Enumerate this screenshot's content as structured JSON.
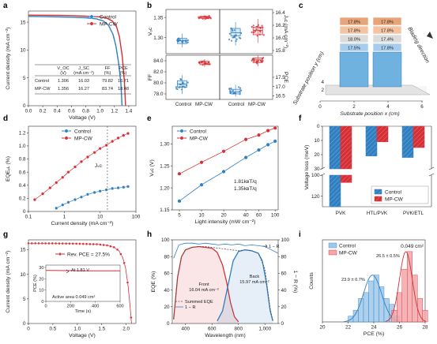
{
  "colors": {
    "control": "#2f7fc1",
    "mpcw": "#d62f35",
    "control_light": "#9ec8ea",
    "mpcw_light": "#f2a6a9",
    "pbar_top": "#e7a478",
    "pbar_mid": "#f4c4a2",
    "pbar_base": "#6fb1df"
  },
  "panel_labels": [
    "a",
    "b",
    "c",
    "d",
    "e",
    "f",
    "g",
    "h",
    "i"
  ],
  "chart_data": [
    {
      "panel": "a",
      "type": "line",
      "xlabel": "Voltage (V)",
      "ylabel": "Current density (mA cm⁻²)",
      "xlim": [
        0,
        1.5
      ],
      "ylim": [
        0,
        17
      ],
      "xticks": [
        0,
        0.2,
        0.4,
        0.6,
        0.8,
        1.0,
        1.2,
        1.4
      ],
      "yticks": [
        0,
        5,
        10,
        15
      ],
      "series": [
        {
          "name": "Control",
          "color": "#2f7fc1",
          "x": [
            0,
            0.2,
            0.4,
            0.6,
            0.8,
            0.95,
            1.05,
            1.12,
            1.18,
            1.22,
            1.26,
            1.29,
            1.306
          ],
          "y": [
            16.03,
            16.0,
            15.95,
            15.9,
            15.8,
            15.6,
            15.2,
            14.4,
            12.8,
            10.8,
            7.6,
            4.0,
            0
          ]
        },
        {
          "name": "MP-CW",
          "color": "#d62f35",
          "x": [
            0,
            0.2,
            0.4,
            0.6,
            0.8,
            1.0,
            1.1,
            1.17,
            1.23,
            1.27,
            1.31,
            1.34,
            1.356
          ],
          "y": [
            16.27,
            16.25,
            16.22,
            16.18,
            16.1,
            15.95,
            15.7,
            15.2,
            14.2,
            12.4,
            8.8,
            4.2,
            0
          ]
        }
      ],
      "table": {
        "headers": [
          "",
          "Vₒc\n(V)",
          "Jₛc\n(mA cm⁻²)",
          "FF\n(%)",
          "PCE\n(%)"
        ],
        "header_top": [
          "",
          "V_OC",
          "J_SC",
          "FF",
          "PCE"
        ],
        "header_bottom": [
          "",
          "(V)",
          "(mA cm⁻²)",
          "(%)",
          "(%)"
        ],
        "rows": [
          [
            "Control",
            "1.306",
            "16.03",
            "79.82",
            "16.71"
          ],
          [
            "MP-CW",
            "1.356",
            "16.27",
            "83.74",
            "18.48"
          ]
        ]
      }
    },
    {
      "panel": "b",
      "type": "scatter",
      "categories": [
        "Control",
        "MP-CW"
      ],
      "subplots": [
        {
          "ylabel": "Vₒc",
          "unit": "(V)",
          "ylim": [
            1.26,
            1.37
          ],
          "yticks": [
            "1.35",
            "1.30"
          ],
          "side": "left",
          "control": {
            "q1": 1.285,
            "med": 1.292,
            "q3": 1.298,
            "lo": 1.276,
            "hi": 1.31
          },
          "mpcw": {
            "q1": 1.348,
            "med": 1.351,
            "q3": 1.353,
            "lo": 1.343,
            "hi": 1.357
          }
        },
        {
          "ylabel": "Jₛc (mA cm⁻²)",
          "unit": "",
          "ylim": [
            15.75,
            16.45
          ],
          "yticks": [
            "16.4",
            "16.2",
            "16.0",
            "15.8"
          ],
          "side": "right",
          "control": {
            "q1": 16.03,
            "med": 16.08,
            "q3": 16.15,
            "lo": 15.88,
            "hi": 16.25
          },
          "mpcw": {
            "q1": 16.05,
            "med": 16.12,
            "q3": 16.17,
            "lo": 15.92,
            "hi": 16.3
          }
        },
        {
          "ylabel": "FF",
          "unit": "(%)",
          "ylim": [
            77,
            85
          ],
          "yticks": [
            "84.0",
            "82.0",
            "80.0",
            "78.0"
          ],
          "side": "left",
          "control": {
            "q1": 79.2,
            "med": 79.8,
            "q3": 80.4,
            "lo": 78.0,
            "hi": 81.4
          },
          "mpcw": {
            "q1": 83.3,
            "med": 83.6,
            "q3": 83.9,
            "lo": 82.9,
            "hi": 84.3
          }
        },
        {
          "ylabel": "PCE",
          "unit": "(%)",
          "ylim": [
            16.3,
            18.7
          ],
          "yticks": [
            "17.5",
            "17.0",
            "16.5"
          ],
          "side": "right",
          "control": {
            "q1": 16.6,
            "med": 16.7,
            "q3": 16.85,
            "lo": 16.45,
            "hi": 17.1
          },
          "mpcw": {
            "q1": 18.3,
            "med": 18.45,
            "q3": 18.55,
            "lo": 18.1,
            "hi": 18.7
          }
        }
      ]
    },
    {
      "panel": "c",
      "type": "bar",
      "xlabel": "Substrate position x (cm)",
      "ylabel": "Substrate position y (cm)",
      "xticks": [
        "0",
        "2",
        "4",
        "6"
      ],
      "yticks": [
        "2",
        "4"
      ],
      "blading_label": "Blading direction",
      "columns": [
        {
          "x": 2,
          "values": [
            "17.8%",
            "17.8%",
            "18.0%",
            "17.5%"
          ]
        },
        {
          "x": 4,
          "values": [
            "17.8%",
            "17.8%",
            "17.4%",
            "17.8%"
          ]
        }
      ]
    },
    {
      "panel": "d",
      "type": "scatter",
      "xlabel": "Current density (mA cm⁻²)",
      "ylabel": "EQEₑʟ (%)",
      "xscale": "log",
      "xlim": [
        0.1,
        100
      ],
      "ylim": [
        0,
        1.3
      ],
      "xticks": [
        "0.1",
        "1",
        "10",
        "100"
      ],
      "yticks": [
        "0",
        "0.2",
        "0.4",
        "0.6",
        "0.8",
        "1.0",
        "1.2"
      ],
      "jsc_marker": 16,
      "jsc_label": "Jₛc",
      "series": [
        {
          "name": "Control",
          "color": "#2f7fc1",
          "x": [
            0.6,
            0.9,
            1.3,
            2,
            3,
            4.5,
            7,
            10,
            15,
            22,
            32,
            45,
            60
          ],
          "y": [
            0.05,
            0.1,
            0.14,
            0.18,
            0.22,
            0.26,
            0.29,
            0.31,
            0.33,
            0.35,
            0.36,
            0.37,
            0.38
          ]
        },
        {
          "name": "MP-CW",
          "color": "#d62f35",
          "x": [
            0.15,
            0.25,
            0.4,
            0.6,
            0.9,
            1.3,
            2,
            3,
            4.5,
            7,
            10,
            15,
            22,
            32,
            45,
            60
          ],
          "y": [
            0.18,
            0.27,
            0.36,
            0.44,
            0.52,
            0.6,
            0.68,
            0.76,
            0.83,
            0.9,
            0.96,
            1.01,
            1.07,
            1.12,
            1.16,
            1.19
          ]
        }
      ]
    },
    {
      "panel": "e",
      "type": "scatter",
      "xlabel": "Light intensity (mW cm⁻²)",
      "ylabel": "Vₒc (V)",
      "xscale": "log",
      "xlim": [
        4,
        110
      ],
      "ylim": [
        1.15,
        1.34
      ],
      "xticks": [
        "5",
        "10",
        "20",
        "40",
        "60",
        "100"
      ],
      "yticks": [
        "1.15",
        "1.20",
        "1.25",
        "1.30"
      ],
      "annotations": [
        {
          "text": "1.81kʙT/q",
          "color": "#2f7fc1"
        },
        {
          "text": "1.35kʙT/q",
          "color": "#d62f35"
        }
      ],
      "series": [
        {
          "name": "Control",
          "color": "#2f7fc1",
          "x": [
            5,
            10,
            20,
            40,
            60,
            80,
            100
          ],
          "y": [
            1.17,
            1.207,
            1.237,
            1.269,
            1.286,
            1.298,
            1.306
          ]
        },
        {
          "name": "MP-CW",
          "color": "#d62f35",
          "x": [
            5,
            10,
            20,
            40,
            60,
            80,
            100
          ],
          "y": [
            1.232,
            1.258,
            1.283,
            1.31,
            1.32,
            1.33,
            1.336
          ]
        }
      ]
    },
    {
      "panel": "f",
      "type": "bar",
      "ylabel": "Voltage loss (meV)",
      "categories": [
        "PVK",
        "HTL/PVK",
        "PVK/ETL"
      ],
      "yticks_top": [
        "0",
        "10",
        "20",
        "30"
      ],
      "yticks_bottom": [
        "100",
        "120"
      ],
      "series": [
        {
          "name": "Control",
          "color": "#2f7fc1",
          "values": [
            130,
            21,
            22
          ]
        },
        {
          "name": "MP-CW",
          "color": "#d62f35",
          "values": [
            107,
            11,
            15
          ]
        }
      ]
    },
    {
      "panel": "g",
      "type": "line",
      "xlabel": "Voltage (V)",
      "ylabel": "Current density (mA cm⁻²)",
      "xlim": [
        0,
        2.2
      ],
      "ylim": [
        0,
        17
      ],
      "xticks": [
        "0",
        "0.5",
        "1.0",
        "1.5",
        "2.0"
      ],
      "yticks": [
        "0",
        "5",
        "10",
        "15"
      ],
      "series": [
        {
          "name": "Rev. PCE = 27.5%",
          "color": "#d62f35",
          "x": [
            0,
            0.5,
            1.0,
            1.4,
            1.6,
            1.75,
            1.85,
            1.93,
            1.99,
            2.04,
            2.08,
            2.11
          ],
          "y": [
            16.3,
            16.28,
            16.22,
            16.1,
            15.9,
            15.5,
            14.8,
            13.4,
            11.2,
            7.6,
            3.6,
            0
          ]
        }
      ],
      "inset": {
        "title": "At 1.81 V",
        "ylabel": "PCE (%)",
        "xlabel": "Time (s)",
        "note": "Active area 0.049 cm²",
        "ylim": [
          0,
          32
        ],
        "xlim": [
          0,
          600
        ],
        "xticks": [
          "0",
          "200",
          "400",
          "600"
        ],
        "yticks": [
          "0",
          "10",
          "20",
          "30"
        ],
        "series": [
          {
            "color": "#d62f35",
            "x": [
              0,
              100,
              200,
              300,
              400,
              500,
              600
            ],
            "y": [
              27.3,
              27.2,
              27.1,
              27.0,
              27.0,
              26.9,
              26.9
            ]
          }
        ]
      }
    },
    {
      "panel": "h",
      "type": "line",
      "xlabel": "Wavelength (nm)",
      "ylabel": "EQE (%)",
      "ylabel_right": "1 − R (%)",
      "xlim": [
        300,
        1100
      ],
      "ylim": [
        0,
        100
      ],
      "xticks": [
        "400",
        "600",
        "800",
        "1,000"
      ],
      "yticks": [
        "0",
        "20",
        "40",
        "60",
        "80",
        "100"
      ],
      "annotations": [
        {
          "text": "Front",
          "sub": "16.04 mA cm⁻²"
        },
        {
          "text": "Back",
          "sub": "15.97 mA cm⁻²"
        },
        {
          "text": "1 − R"
        }
      ],
      "legend": [
        "Summed EQE",
        "1 − R"
      ],
      "series": [
        {
          "name": "Front",
          "color": "#d62f35",
          "x": [
            310,
            340,
            370,
            400,
            450,
            500,
            550,
            600,
            640,
            680,
            710,
            740,
            770,
            800
          ],
          "y": [
            5,
            55,
            80,
            88,
            91,
            92,
            91,
            90,
            85,
            70,
            50,
            25,
            8,
            2
          ]
        },
        {
          "name": "Back",
          "color": "#2f7fc1",
          "x": [
            640,
            680,
            720,
            760,
            800,
            850,
            900,
            950,
            980,
            1010,
            1040,
            1060
          ],
          "y": [
            3,
            15,
            45,
            75,
            86,
            88,
            87,
            84,
            75,
            50,
            15,
            3
          ]
        },
        {
          "name": "Summed EQE",
          "color": "#555555",
          "x": [
            310,
            340,
            370,
            400,
            450,
            500,
            550,
            600,
            650,
            700,
            750,
            800,
            850,
            900,
            950,
            1000,
            1040,
            1060
          ],
          "y": [
            5,
            55,
            80,
            88,
            91,
            92,
            92,
            91,
            90,
            89,
            88,
            87,
            88,
            87,
            84,
            65,
            18,
            3
          ]
        },
        {
          "name": "1 − R",
          "color": "#2f7fc1",
          "x": [
            310,
            350,
            400,
            450,
            500,
            550,
            600,
            650,
            700,
            750,
            800,
            850,
            900,
            950,
            1000,
            1050,
            1100
          ],
          "y": [
            78,
            94,
            96,
            96,
            95,
            96,
            95,
            94,
            95,
            94,
            95,
            93,
            94,
            93,
            92,
            88,
            84
          ]
        }
      ]
    },
    {
      "panel": "i",
      "type": "bar",
      "xlabel": "PCE (%)",
      "ylabel": "Counts",
      "xlim": [
        20,
        28
      ],
      "xticks": [
        "20",
        "22",
        "24",
        "26",
        "28"
      ],
      "note": "0.049 cm²",
      "annotations": [
        {
          "text": "23.9 ± 0.7%",
          "color": "#2f7fc1"
        },
        {
          "text": "26.5 ± 0.5%",
          "color": "#d62f35"
        }
      ],
      "series": [
        {
          "name": "Control",
          "color": "#2f7fc1",
          "bin_start": 22.0,
          "bin_width": 0.4,
          "values": [
            1,
            2,
            4,
            5,
            7,
            8,
            6,
            4,
            3,
            1
          ]
        },
        {
          "name": "MP-CW",
          "color": "#d62f35",
          "bin_start": 25.4,
          "bin_width": 0.4,
          "values": [
            2,
            5,
            9,
            12,
            8,
            4,
            2
          ]
        }
      ]
    }
  ]
}
